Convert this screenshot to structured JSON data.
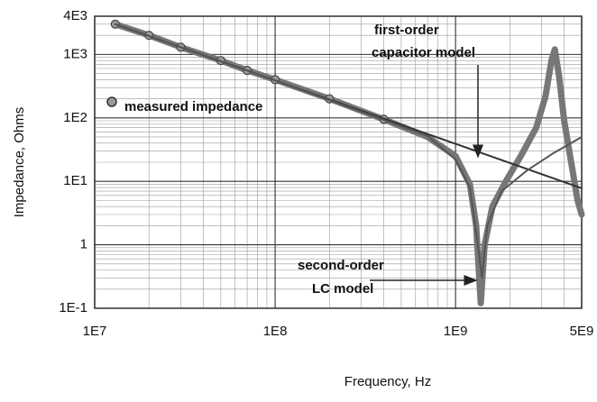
{
  "chart_data": {
    "type": "line",
    "log_x": true,
    "log_y": true,
    "grid": true,
    "xlabel": "Frequency, Hz",
    "ylabel": "Impedance, Ohms",
    "xlim": [
      10000000,
      5000000000
    ],
    "xticks": [
      {
        "value": 10000000,
        "label": "1E7"
      },
      {
        "value": 100000000,
        "label": "1E8"
      },
      {
        "value": 1000000000,
        "label": "1E9"
      },
      {
        "value": 5000000000,
        "label": "5E9"
      }
    ],
    "ylim": [
      0.1,
      4000
    ],
    "yticks": [
      {
        "value": 0.1,
        "label": "1E-1"
      },
      1,
      {
        "value": 10,
        "label": "1E1"
      },
      {
        "value": 100,
        "label": "1E2"
      },
      {
        "value": 1000,
        "label": "1E3"
      },
      {
        "value": 4000,
        "label": "4E3"
      }
    ],
    "series": [
      {
        "name": "measured impedance",
        "color": "#777777",
        "x": [
          13000000,
          20000000,
          30000000,
          50000000,
          70000000,
          100000000,
          200000000,
          400000000,
          700000000,
          1000000000,
          1200000000,
          1300000000,
          1380000000,
          1450000000,
          1600000000,
          1900000000,
          2300000000,
          2800000000,
          3150000000,
          3400000000,
          3550000000,
          3750000000,
          4000000000,
          4400000000,
          4750000000,
          5000000000
        ],
        "values": [
          3000,
          2000,
          1300,
          800,
          560,
          400,
          200,
          95,
          50,
          25,
          9,
          2,
          0.12,
          1,
          4,
          10,
          25,
          70,
          220,
          800,
          1200,
          450,
          90,
          18,
          5,
          3
        ]
      },
      {
        "name": "first-order capacitor model",
        "color": "#333333",
        "x": [
          13000000,
          5000000000
        ],
        "values": [
          3000,
          7.8
        ]
      },
      {
        "name": "second-order LC model",
        "color": "#555555",
        "x": [
          13000000,
          100000000,
          700000000,
          1000000000,
          1200000000,
          1330000000,
          1400000000,
          1500000000,
          1800000000,
          2500000000,
          3500000000,
          5000000000
        ],
        "values": [
          3000,
          390,
          52,
          22,
          8,
          1,
          0.3,
          2,
          7,
          15,
          28,
          50
        ]
      }
    ],
    "annotations": [
      {
        "lines": [
          "first-order",
          "capacitor model"
        ]
      },
      {
        "lines": [
          "second-order",
          "LC model"
        ]
      }
    ]
  }
}
